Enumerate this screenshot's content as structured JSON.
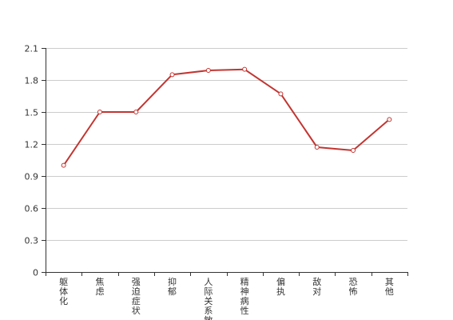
{
  "chart_data": {
    "type": "line",
    "categories": [
      "躯体化",
      "焦虑",
      "强迫症状",
      "抑郁",
      "人际关系敏感",
      "精神病性",
      "偏执",
      "敌对",
      "恐怖",
      "其他"
    ],
    "series": [
      {
        "values": [
          1.0,
          1.5,
          1.5,
          1.85,
          1.89,
          1.9,
          1.67,
          1.17,
          1.14,
          1.43
        ]
      }
    ],
    "ylim": [
      0,
      2.1
    ],
    "yticks": [
      "0",
      "0.3",
      "0.6",
      "0.9",
      "1.2",
      "1.5",
      "1.8",
      "2.1"
    ],
    "grid": true,
    "colors": {
      "line": "#c23531",
      "marker_fill": "#ffffff",
      "grid": "#cccccc",
      "axis": "#333333"
    }
  }
}
